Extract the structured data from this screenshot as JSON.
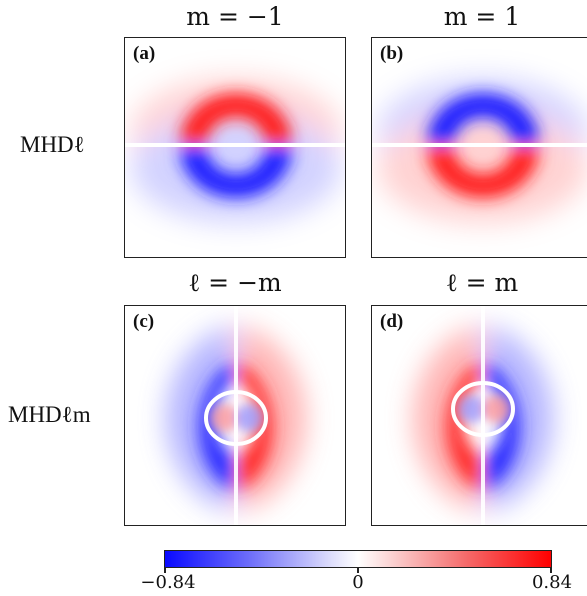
{
  "columns": {
    "top_left": "m = −1",
    "top_right": "m = 1",
    "bottom_left": "ℓ = −m",
    "bottom_right": "ℓ = m"
  },
  "rows": {
    "top": "MHDℓ",
    "bottom": "MHDℓm"
  },
  "panels": {
    "a": "(a)",
    "b": "(b)",
    "c": "(c)",
    "d": "(d)"
  },
  "colorbar": {
    "min_label": "−0.84",
    "mid_label": "0",
    "max_label": "0.84",
    "min_color": "#0000ff",
    "max_color": "#ff0000"
  }
}
